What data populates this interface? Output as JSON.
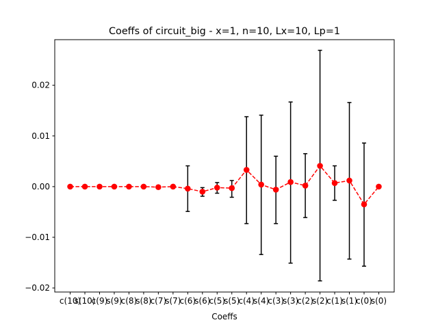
{
  "chart_data": {
    "type": "line",
    "title": "Coeffs of circuit_big - x=1, n=10, Lx=10, Lp=1",
    "xlabel": "Coeffs",
    "ylabel": "",
    "categories": [
      "c(10)",
      "s(10)",
      "c(9)",
      "s(9)",
      "c(8)",
      "s(8)",
      "c(7)",
      "s(7)",
      "c(6)",
      "s(6)",
      "c(5)",
      "s(5)",
      "c(4)",
      "s(4)",
      "c(3)",
      "s(3)",
      "c(2)",
      "s(2)",
      "c(1)",
      "s(1)",
      "c(0)",
      "s(0)"
    ],
    "ylim": [
      -0.0208,
      0.029
    ],
    "yticks": [
      -0.02,
      -0.01,
      0.0,
      0.01,
      0.02
    ],
    "ytick_labels": [
      "−0.02",
      "−0.01",
      "0.00",
      "0.01",
      "0.02"
    ],
    "grid": false,
    "series": [
      {
        "color": "#ff0000",
        "linestyle": "dashed",
        "marker": "circle",
        "values": [
          0.0,
          0.0,
          0.0,
          0.0,
          0.0,
          0.0,
          -0.0001,
          0.0,
          -0.0004,
          -0.001,
          -0.0002,
          -0.0003,
          0.0033,
          0.0004,
          -0.0006,
          0.0009,
          0.0002,
          0.0041,
          0.0007,
          0.0012,
          -0.0035,
          0.0
        ],
        "err_low": [
          0.0,
          0.0,
          0.0,
          0.0,
          0.0,
          0.0,
          0.0,
          0.0,
          -0.0049,
          -0.0019,
          -0.0013,
          -0.0021,
          -0.0073,
          -0.0134,
          -0.0073,
          -0.0151,
          -0.0061,
          -0.0186,
          -0.0027,
          -0.0143,
          -0.0157,
          0.0
        ],
        "err_high": [
          0.0,
          0.0,
          0.0,
          0.0,
          0.0,
          0.0,
          0.0,
          0.0,
          0.0041,
          -0.0002,
          0.0008,
          0.0012,
          0.0138,
          0.0141,
          0.006,
          0.0167,
          0.0065,
          0.0269,
          0.0041,
          0.0166,
          0.0086,
          0.0
        ]
      }
    ],
    "colors": {
      "errorbar": "#000000",
      "series": "#ff0000",
      "axes": "#000000"
    }
  }
}
